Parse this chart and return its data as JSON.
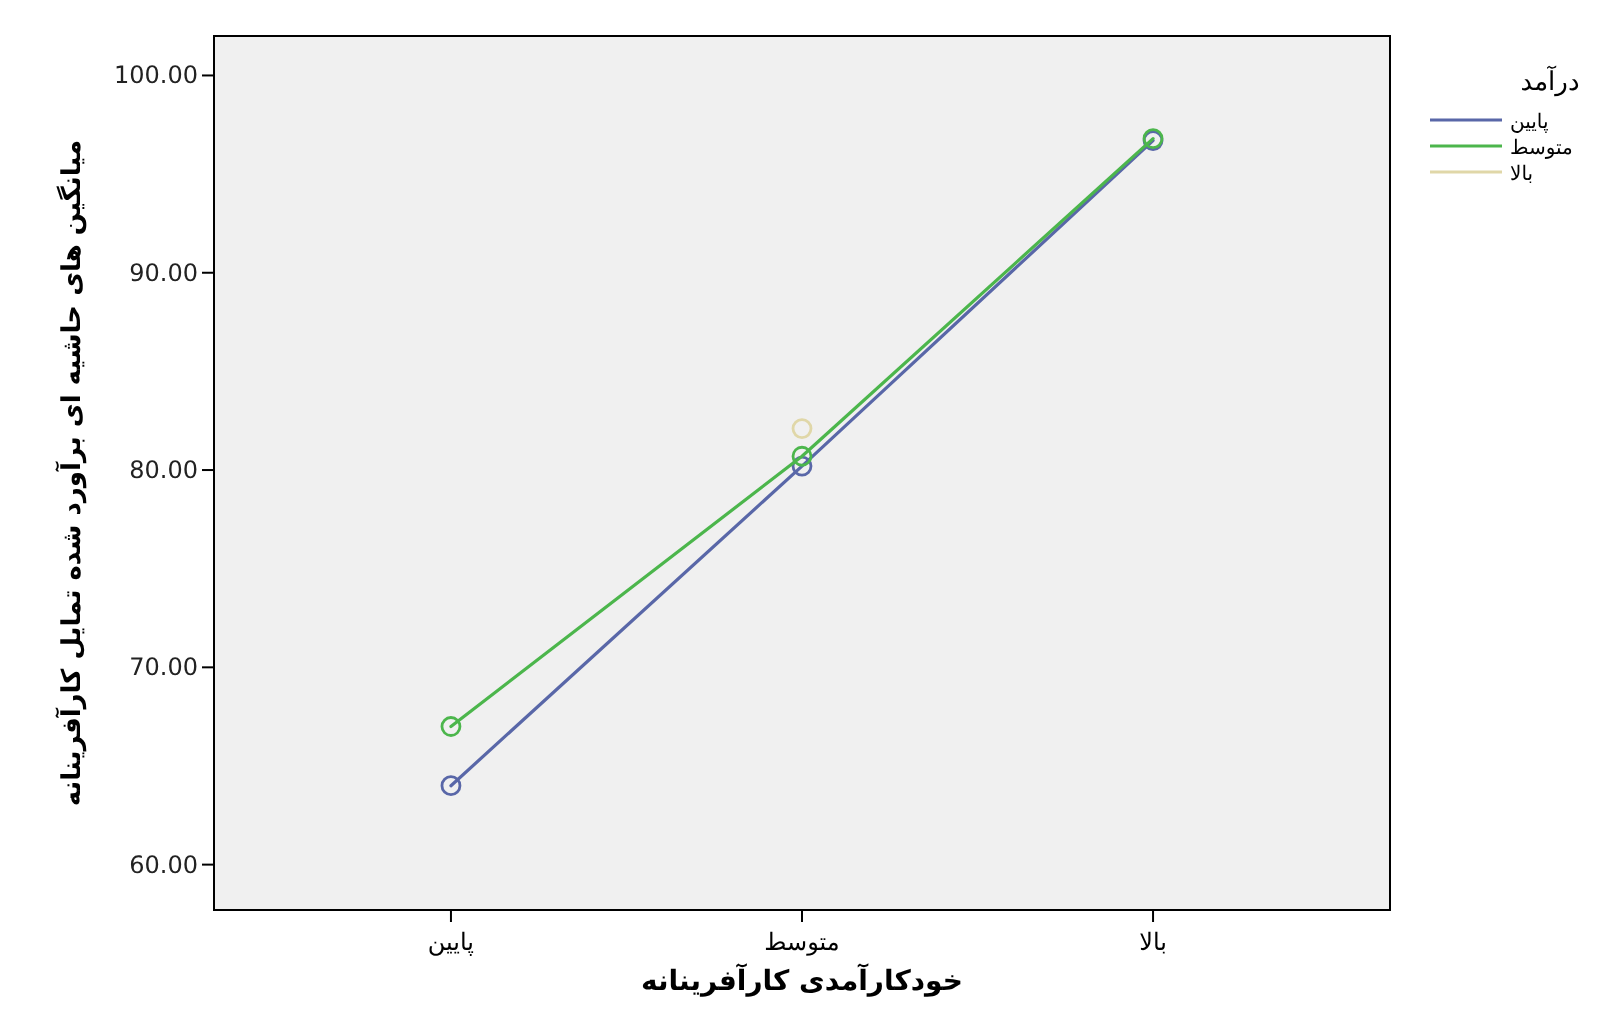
{
  "chart_data": {
    "type": "line",
    "xlabel": "خودکارآمدی کارآفرینانه",
    "ylabel": "میانگین های حاشیه ای برآورد شده تمایل کارآفرینانه",
    "legend_title": "درآمد",
    "categories": [
      "پایین",
      "متوسط",
      "بالا"
    ],
    "series": [
      {
        "name": "پایین",
        "color": "#5967a8",
        "values": [
          64.0,
          80.2,
          96.7
        ]
      },
      {
        "name": "متوسط",
        "color": "#4cb64c",
        "values": [
          67.0,
          80.7,
          96.8
        ]
      },
      {
        "name": "بالا",
        "color": "#e0d7a8",
        "values": [
          null,
          82.1,
          null
        ]
      }
    ],
    "ylim": [
      57.7,
      102
    ],
    "yticks": [
      {
        "value": 60,
        "label": "60.00"
      },
      {
        "value": 70,
        "label": "70.00"
      },
      {
        "value": 80,
        "label": "80.00"
      },
      {
        "value": 90,
        "label": "90.00"
      },
      {
        "value": 100,
        "label": "100.00"
      }
    ],
    "marker": "circle",
    "line_style": "solid",
    "grid": false,
    "legend": "right"
  }
}
